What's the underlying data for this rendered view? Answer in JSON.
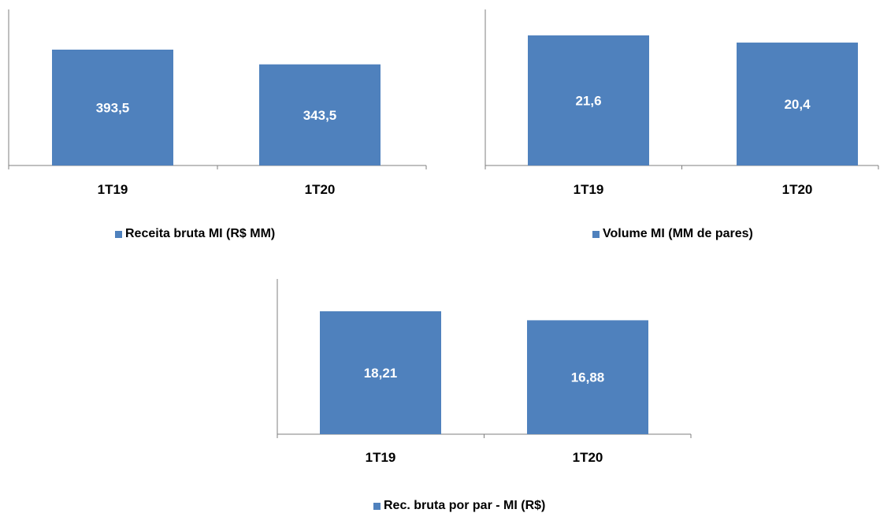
{
  "colors": {
    "bar": "#4f81bd",
    "axis": "#7f7f7f"
  },
  "chart_data": [
    {
      "type": "bar",
      "categories": [
        "1T19",
        "1T20"
      ],
      "series": [
        {
          "name": "Receita bruta MI (R$ MM)",
          "values": [
            393.5,
            343.5
          ],
          "labels": [
            "393,5",
            "343,5"
          ]
        }
      ],
      "ylim": [
        0,
        530
      ],
      "grid": false,
      "legend": "bottom"
    },
    {
      "type": "bar",
      "categories": [
        "1T19",
        "1T20"
      ],
      "series": [
        {
          "name": "Volume MI (MM de pares)",
          "values": [
            21.6,
            20.4
          ],
          "labels": [
            "21,6",
            "20,4"
          ]
        }
      ],
      "ylim": [
        0,
        25.9
      ],
      "grid": false,
      "legend": "bottom"
    },
    {
      "type": "bar",
      "categories": [
        "1T19",
        "1T20"
      ],
      "series": [
        {
          "name": "Rec. bruta por par -  MI (R$)",
          "values": [
            18.21,
            16.88
          ],
          "labels": [
            "18,21",
            "16,88"
          ]
        }
      ],
      "ylim": [
        0,
        23
      ],
      "grid": false,
      "legend": "bottom"
    }
  ]
}
